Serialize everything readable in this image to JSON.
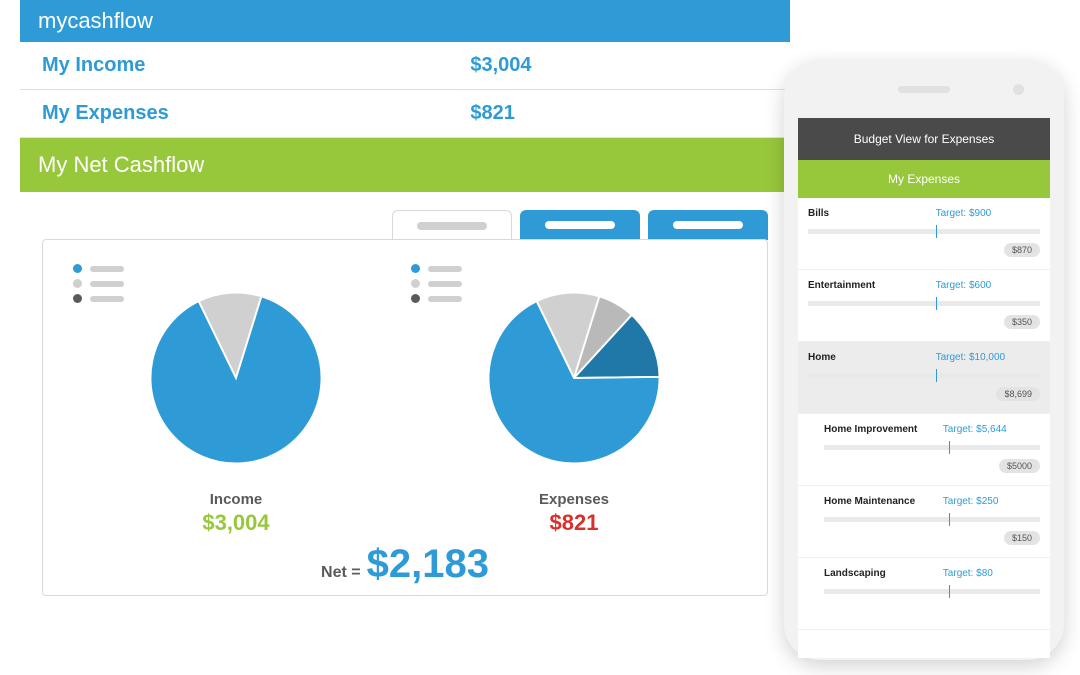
{
  "colors": {
    "brand_blue": "#2e9bd6",
    "brand_green": "#97c83c",
    "grey_light": "#d0d0d0",
    "grey_mid": "#b9b9b9",
    "grey_dark": "#5a5a5a",
    "red": "#d9302c",
    "phone_header": "#4a4a4a"
  },
  "app": {
    "title": "mycashflow",
    "summary": {
      "income_label": "My Income",
      "income_value": "$3,004",
      "expenses_label": "My Expenses",
      "expenses_value": "$821"
    },
    "section_title": "My Net Cashflow",
    "tabs": {
      "count": 3,
      "active_index": 0
    },
    "charts": {
      "legend_colors": [
        "#2e9bd6",
        "#d0d0d0",
        "#5a5a5a"
      ],
      "income": {
        "type": "pie",
        "label": "Income",
        "value": "$3,004",
        "value_color": "#97c83c",
        "slices": [
          {
            "color": "#d0d0d0",
            "pct": 12
          },
          {
            "color": "#2e9bd6",
            "pct": 88
          }
        ]
      },
      "expenses": {
        "type": "pie",
        "label": "Expenses",
        "value": "$821",
        "value_color": "#d9302c",
        "slices": [
          {
            "color": "#d0d0d0",
            "pct": 12
          },
          {
            "color": "#b9b9b9",
            "pct": 7
          },
          {
            "color": "#1f78a8",
            "pct": 13
          },
          {
            "color": "#2e9bd6",
            "pct": 68
          }
        ]
      }
    },
    "net": {
      "label": "Net =",
      "value": "$2,183"
    }
  },
  "phone": {
    "header": "Budget View for Expenses",
    "subheader": "My Expenses",
    "items": [
      {
        "name": "Bills",
        "target": "Target: $900",
        "actual": "$870",
        "marker_pct": 55,
        "indent": false,
        "selected": false
      },
      {
        "name": "Entertainment",
        "target": "Target: $600",
        "actual": "$350",
        "marker_pct": 55,
        "indent": false,
        "selected": false
      },
      {
        "name": "Home",
        "target": "Target: $10,000",
        "actual": "$8,699",
        "marker_pct": 55,
        "indent": false,
        "selected": true
      },
      {
        "name": "Home Improvement",
        "target": "Target: $5,644",
        "actual": "$5000",
        "marker_pct": 58,
        "indent": true,
        "selected": false
      },
      {
        "name": "Home Maintenance",
        "target": "Target: $250",
        "actual": "$150",
        "marker_pct": 58,
        "indent": true,
        "selected": false
      },
      {
        "name": "Landscaping",
        "target": "Target: $80",
        "actual": "",
        "marker_pct": 58,
        "indent": true,
        "selected": false
      }
    ]
  }
}
